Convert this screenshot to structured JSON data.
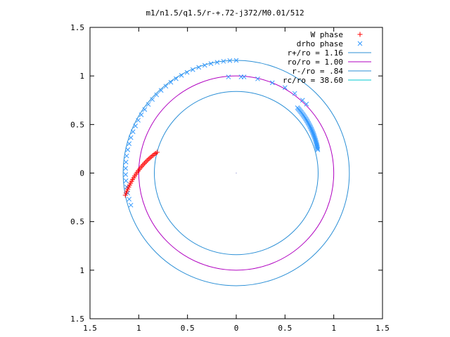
{
  "chart_data": {
    "type": "scatter",
    "title": "m1/n1.5/q1.5/r-+.72-j372/M0.01/512",
    "xlim": [
      -1.5,
      1.5
    ],
    "ylim": [
      -1.5,
      1.5
    ],
    "x_ticks": [
      {
        "value": -1.5,
        "label": "1.5"
      },
      {
        "value": -1.0,
        "label": "1"
      },
      {
        "value": -0.5,
        "label": "0.5"
      },
      {
        "value": 0.0,
        "label": "0"
      },
      {
        "value": 0.5,
        "label": "0.5"
      },
      {
        "value": 1.0,
        "label": "1"
      },
      {
        "value": 1.5,
        "label": "1.5"
      }
    ],
    "y_ticks": [
      {
        "value": 1.5,
        "label": "1.5"
      },
      {
        "value": 1.0,
        "label": "1"
      },
      {
        "value": 0.5,
        "label": "0.5"
      },
      {
        "value": 0.0,
        "label": "0"
      },
      {
        "value": -0.5,
        "label": "0.5"
      },
      {
        "value": -1.0,
        "label": "1"
      },
      {
        "value": -1.5,
        "label": "1.5"
      }
    ],
    "grid": false,
    "legend_position": "top-right",
    "legend": [
      {
        "label": "W phase",
        "marker": "plus",
        "color": "#ff0000"
      },
      {
        "label": "drho phase",
        "marker": "cross",
        "color": "#3399ff"
      },
      {
        "label": "r+/ro = 1.16",
        "marker": "line",
        "color": "#2b8fd6"
      },
      {
        "label": "ro/ro = 1.00",
        "marker": "line",
        "color": "#b000c0"
      },
      {
        "label": "r-/ro = .84",
        "marker": "line",
        "color": "#2b8fd6"
      },
      {
        "label": "rc/ro = 38.60",
        "marker": "line",
        "color": "#00c8d2"
      }
    ],
    "circles": [
      {
        "name": "r+/ro = 1.16",
        "radius": 1.16,
        "color": "#2b8fd6"
      },
      {
        "name": "ro/ro = 1.00",
        "radius": 1.0,
        "color": "#b000c0"
      },
      {
        "name": "r-/ro = .84",
        "radius": 0.84,
        "color": "#2b8fd6"
      }
    ],
    "w_phase": {
      "color": "#ff0000",
      "r_start": 0.84,
      "r_end": 1.16,
      "angle_start_deg": 165.2,
      "angle_end_deg": 191.3,
      "count": 28
    },
    "drho_phase": {
      "color": "#3399ff",
      "arc_left": {
        "r_start": 1.16,
        "r_end": 1.13,
        "angle_start_deg": 90,
        "angle_end_deg": 197,
        "count": 34
      },
      "arc_top": [
        {
          "x": -0.08,
          "y": 0.99
        },
        {
          "x": 0.05,
          "y": 0.99
        },
        {
          "x": 0.08,
          "y": 0.99
        },
        {
          "x": 0.22,
          "y": 0.97
        },
        {
          "x": 0.37,
          "y": 0.93
        },
        {
          "x": 0.5,
          "y": 0.88
        },
        {
          "x": 0.6,
          "y": 0.82
        },
        {
          "x": 0.68,
          "y": 0.75
        },
        {
          "x": 0.72,
          "y": 0.71
        }
      ],
      "arc_right": {
        "r_start": 0.92,
        "r_end": 0.87,
        "angle_start_deg": 47,
        "angle_end_deg": 16,
        "count": 40
      }
    }
  }
}
